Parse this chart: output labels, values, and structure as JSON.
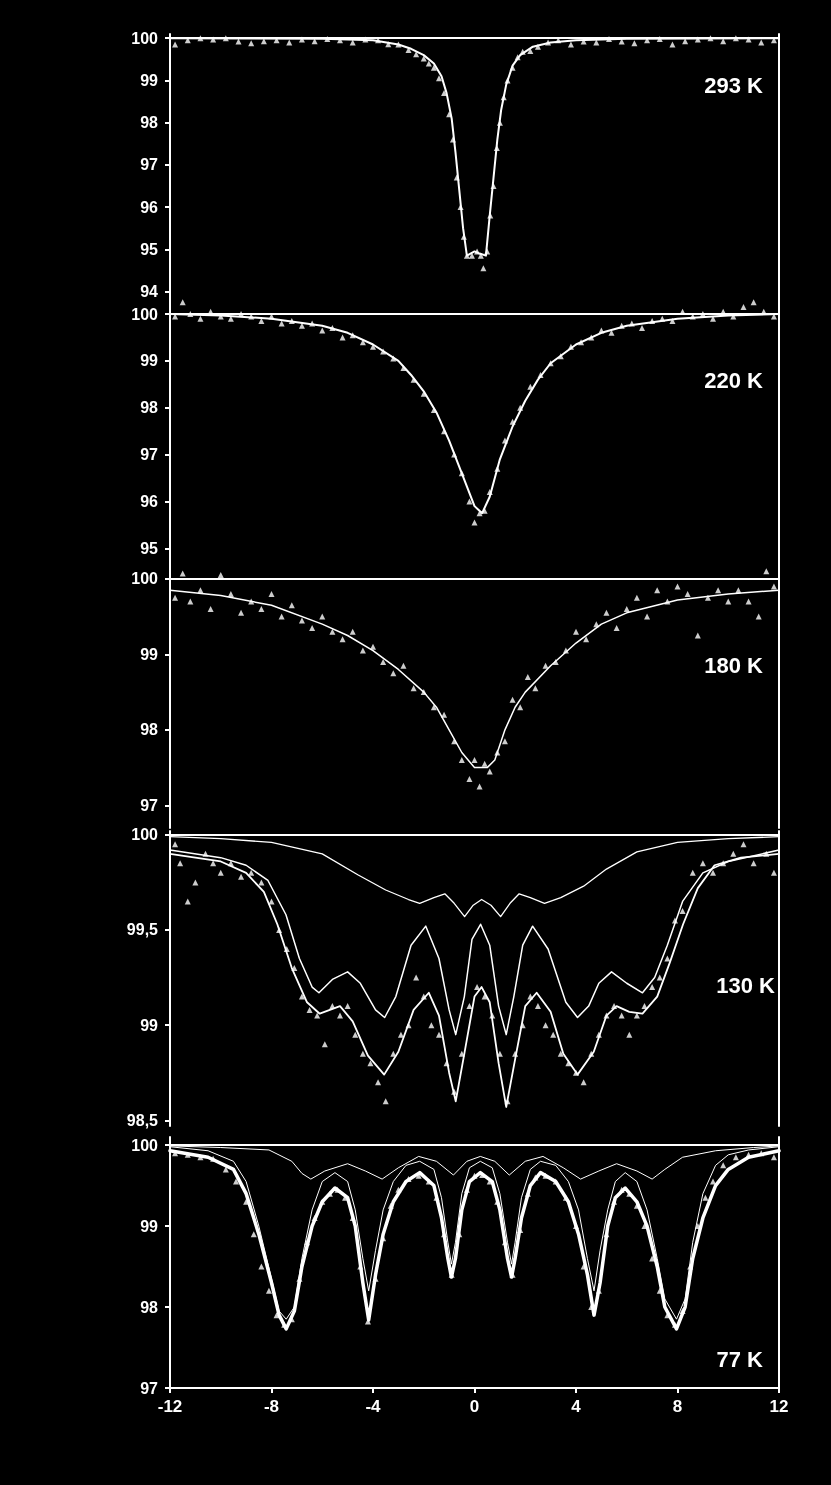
{
  "chart_data": [
    {
      "type": "line",
      "annotations": [
        "293 K"
      ],
      "xlim": [
        -12,
        12
      ],
      "ylim": [
        93.8,
        100.1
      ],
      "yticks": [
        94,
        95,
        96,
        97,
        98,
        99,
        100
      ],
      "tick_labels": "y",
      "ref_lines": [
        {
          "axis": "y",
          "value": 100,
          "color": "#ffffff"
        }
      ],
      "series": [
        {
          "type": "scatter",
          "marker": "triangle",
          "color": "#ffffff",
          "x": [
            -11.8,
            -11.3,
            -10.8,
            -10.3,
            -9.8,
            -9.3,
            -8.8,
            -8.3,
            -7.8,
            -7.3,
            -6.8,
            -6.3,
            -5.8,
            -5.3,
            -4.8,
            -4.3,
            -3.8,
            -3.4,
            -3.0,
            -2.6,
            -2.3,
            -2.0,
            -1.8,
            -1.6,
            -1.4,
            -1.2,
            -1.0,
            -0.85,
            -0.7,
            -0.55,
            -0.42,
            -0.3,
            -0.1,
            0.1,
            0.25,
            0.35,
            0.5,
            0.62,
            0.75,
            0.88,
            1.0,
            1.15,
            1.3,
            1.5,
            1.7,
            1.9,
            2.2,
            2.5,
            2.9,
            3.3,
            3.8,
            4.3,
            4.8,
            5.3,
            5.8,
            6.3,
            6.8,
            7.3,
            7.8,
            8.3,
            8.8,
            9.3,
            9.8,
            10.3,
            10.8,
            11.3,
            11.8
          ],
          "values": [
            99.85,
            99.95,
            100.0,
            99.97,
            100.0,
            99.92,
            99.88,
            99.93,
            99.95,
            99.9,
            99.97,
            99.93,
            99.98,
            99.95,
            99.9,
            99.97,
            99.95,
            99.86,
            99.85,
            99.72,
            99.62,
            99.52,
            99.4,
            99.3,
            99.05,
            98.7,
            98.2,
            97.6,
            96.7,
            96.0,
            95.3,
            94.85,
            94.85,
            94.95,
            94.85,
            94.55,
            94.95,
            95.8,
            96.5,
            97.4,
            98.0,
            98.6,
            99.0,
            99.3,
            99.55,
            99.68,
            99.7,
            99.8,
            99.9,
            99.95,
            99.85,
            99.92,
            99.9,
            99.98,
            99.92,
            99.88,
            99.95,
            99.98,
            99.85,
            99.93,
            99.97,
            100.0,
            99.93,
            100.0,
            99.97,
            99.9,
            99.95
          ]
        },
        {
          "type": "line",
          "marker": "none",
          "color": "#ffffff",
          "x": [
            -12,
            -6,
            -4,
            -3,
            -2.5,
            -2,
            -1.6,
            -1.3,
            -1.1,
            -0.9,
            -0.75,
            -0.6,
            -0.45,
            -0.3,
            0,
            0.2,
            0.45,
            0.6,
            0.75,
            0.9,
            1.05,
            1.25,
            1.5,
            1.8,
            2.3,
            3,
            4,
            6,
            12
          ],
          "values": [
            100,
            99.99,
            99.95,
            99.85,
            99.75,
            99.6,
            99.4,
            99.1,
            98.7,
            98.1,
            97.3,
            96.4,
            95.5,
            94.85,
            94.95,
            94.9,
            94.85,
            95.8,
            96.7,
            97.6,
            98.3,
            98.9,
            99.35,
            99.6,
            99.8,
            99.9,
            99.95,
            99.99,
            100
          ]
        }
      ]
    },
    {
      "type": "line",
      "annotations": [
        "220 K"
      ],
      "xlim": [
        -12,
        12
      ],
      "ylim": [
        94.75,
        100.3
      ],
      "yticks": [
        95,
        96,
        97,
        98,
        99,
        100
      ],
      "tick_labels": "y",
      "ref_lines": [
        {
          "axis": "y",
          "value": 100,
          "color": "#ffffff"
        }
      ],
      "series": [
        {
          "type": "scatter",
          "marker": "triangle",
          "color": "#ffffff",
          "x": [
            -11.8,
            -11.5,
            -11.2,
            -10.8,
            -10.4,
            -10,
            -9.6,
            -9.2,
            -8.8,
            -8.4,
            -8,
            -7.6,
            -7.2,
            -6.8,
            -6.4,
            -6,
            -5.6,
            -5.2,
            -4.8,
            -4.4,
            -4,
            -3.6,
            -3.2,
            -2.8,
            -2.4,
            -2,
            -1.6,
            -1.2,
            -0.8,
            -0.5,
            -0.2,
            0,
            0.2,
            0.4,
            0.6,
            0.9,
            1.2,
            1.5,
            1.8,
            2.2,
            2.6,
            3,
            3.4,
            3.8,
            4.2,
            4.6,
            5,
            5.4,
            5.8,
            6.2,
            6.6,
            7,
            7.4,
            7.8,
            8.2,
            8.6,
            9,
            9.4,
            9.8,
            10.2,
            10.6,
            11,
            11.4,
            11.8
          ],
          "values": [
            99.95,
            100.25,
            100.0,
            99.9,
            100.05,
            99.95,
            99.9,
            100.0,
            99.95,
            99.85,
            99.95,
            99.8,
            99.85,
            99.75,
            99.8,
            99.65,
            99.7,
            99.5,
            99.55,
            99.4,
            99.3,
            99.2,
            99.05,
            98.85,
            98.6,
            98.3,
            97.95,
            97.5,
            97.0,
            96.6,
            96.0,
            95.55,
            95.75,
            95.8,
            96.2,
            96.7,
            97.3,
            97.7,
            98.0,
            98.45,
            98.7,
            98.95,
            99.1,
            99.3,
            99.4,
            99.5,
            99.65,
            99.6,
            99.75,
            99.8,
            99.7,
            99.85,
            99.9,
            99.85,
            100.05,
            99.95,
            100.0,
            99.9,
            100.05,
            99.95,
            100.15,
            100.25,
            100.05,
            99.95
          ]
        },
        {
          "type": "line",
          "marker": "none",
          "color": "#ffffff",
          "x": [
            -12,
            -10,
            -8,
            -6,
            -5,
            -4,
            -3,
            -2.5,
            -2,
            -1.5,
            -1,
            -0.5,
            0,
            0.3,
            0.6,
            1,
            1.5,
            2,
            2.5,
            3,
            4,
            5,
            6,
            8,
            10,
            12
          ],
          "values": [
            100,
            99.97,
            99.9,
            99.75,
            99.6,
            99.35,
            99.0,
            98.7,
            98.35,
            97.9,
            97.3,
            96.6,
            95.9,
            95.75,
            96.1,
            96.9,
            97.6,
            98.15,
            98.6,
            98.95,
            99.35,
            99.6,
            99.75,
            99.9,
            99.97,
            100
          ]
        }
      ]
    },
    {
      "type": "line",
      "annotations": [
        "180 K"
      ],
      "xlim": [
        -12,
        12
      ],
      "ylim": [
        96.7,
        100.25
      ],
      "yticks": [
        97,
        98,
        99,
        100
      ],
      "tick_labels": "y",
      "ref_lines": [
        {
          "axis": "y",
          "value": 100,
          "color": "#ffffff"
        }
      ],
      "series": [
        {
          "type": "scatter",
          "marker": "triangle",
          "color": "#ffffff",
          "x": [
            -11.8,
            -11.5,
            -11.2,
            -10.8,
            -10.4,
            -10,
            -9.6,
            -9.2,
            -8.8,
            -8.4,
            -8,
            -7.6,
            -7.2,
            -6.8,
            -6.4,
            -6,
            -5.6,
            -5.2,
            -4.8,
            -4.4,
            -4,
            -3.6,
            -3.2,
            -2.8,
            -2.4,
            -2,
            -1.6,
            -1.2,
            -0.8,
            -0.5,
            -0.2,
            0,
            0.2,
            0.4,
            0.6,
            0.9,
            1.2,
            1.5,
            1.8,
            2.1,
            2.4,
            2.8,
            3.2,
            3.6,
            4,
            4.4,
            4.8,
            5.2,
            5.6,
            6,
            6.4,
            6.8,
            7.2,
            7.6,
            8,
            8.4,
            8.8,
            9.2,
            9.6,
            10,
            10.4,
            10.8,
            11.2,
            11.5,
            11.8
          ],
          "values": [
            99.75,
            100.07,
            99.7,
            99.85,
            99.6,
            100.05,
            99.8,
            99.55,
            99.7,
            99.6,
            99.8,
            99.5,
            99.65,
            99.45,
            99.35,
            99.5,
            99.3,
            99.2,
            99.3,
            99.05,
            99.1,
            98.9,
            98.75,
            98.85,
            98.55,
            98.5,
            98.3,
            98.2,
            97.85,
            97.6,
            97.35,
            97.6,
            97.25,
            97.55,
            97.45,
            97.7,
            97.85,
            98.4,
            98.3,
            98.7,
            98.55,
            98.85,
            98.9,
            99.05,
            99.3,
            99.2,
            99.4,
            99.55,
            99.35,
            99.6,
            99.75,
            99.5,
            99.85,
            99.7,
            99.9,
            99.8,
            99.25,
            99.75,
            99.85,
            99.7,
            99.85,
            99.7,
            99.5,
            100.1,
            99.9
          ]
        },
        {
          "type": "line",
          "marker": "none",
          "color": "#ffffff",
          "x": [
            -12,
            -10,
            -8,
            -6,
            -5,
            -4,
            -3,
            -2,
            -1.5,
            -1,
            -0.5,
            0,
            0.5,
            0.8,
            1.2,
            1.6,
            2,
            3,
            4,
            5,
            6,
            8,
            10,
            12
          ],
          "values": [
            99.85,
            99.78,
            99.65,
            99.4,
            99.25,
            99.05,
            98.8,
            98.5,
            98.3,
            98.0,
            97.7,
            97.5,
            97.5,
            97.6,
            98.0,
            98.3,
            98.5,
            98.85,
            99.15,
            99.4,
            99.55,
            99.72,
            99.8,
            99.85
          ]
        }
      ]
    },
    {
      "type": "line",
      "annotations": [
        "130 K"
      ],
      "xlim": [
        -12,
        12
      ],
      "ylim": [
        98.47,
        100.02
      ],
      "yticks": [
        {
          "value": 98.5,
          "label": "98,5"
        },
        99,
        {
          "value": 99.5,
          "label": "99,5"
        },
        100
      ],
      "tick_labels": "y",
      "ref_lines": [
        {
          "axis": "y",
          "value": 100,
          "color": "#ffffff"
        }
      ],
      "series": [
        {
          "type": "scatter",
          "marker": "triangle",
          "color": "#ffffff",
          "x": [
            -11.8,
            -11.6,
            -11.3,
            -11,
            -10.6,
            -10.3,
            -10,
            -9.6,
            -9.2,
            -8.8,
            -8.4,
            -8,
            -7.7,
            -7.4,
            -7.1,
            -6.8,
            -6.5,
            -6.2,
            -5.9,
            -5.6,
            -5.3,
            -5,
            -4.7,
            -4.4,
            -4.1,
            -3.8,
            -3.5,
            -3.2,
            -2.9,
            -2.6,
            -2.3,
            -2,
            -1.7,
            -1.4,
            -1.1,
            -0.8,
            -0.5,
            -0.2,
            0.1,
            0.4,
            0.7,
            1.0,
            1.3,
            1.6,
            1.9,
            2.2,
            2.5,
            2.8,
            3.1,
            3.4,
            3.7,
            4.0,
            4.3,
            4.6,
            4.9,
            5.2,
            5.5,
            5.8,
            6.1,
            6.4,
            6.7,
            7.0,
            7.3,
            7.6,
            7.9,
            8.2,
            8.6,
            9,
            9.4,
            9.8,
            10.2,
            10.6,
            11,
            11.5,
            11.8
          ],
          "values": [
            99.95,
            99.85,
            99.65,
            99.75,
            99.9,
            99.85,
            99.8,
            99.85,
            99.78,
            99.8,
            99.75,
            99.65,
            99.5,
            99.4,
            99.3,
            99.15,
            99.08,
            99.05,
            98.9,
            99.1,
            99.05,
            99.1,
            98.95,
            98.85,
            98.8,
            98.7,
            98.6,
            98.85,
            98.95,
            99.0,
            99.25,
            99.15,
            99.0,
            98.95,
            98.8,
            98.65,
            98.85,
            99.1,
            99.2,
            99.15,
            99.05,
            98.85,
            98.6,
            98.85,
            99.0,
            99.15,
            99.1,
            99.0,
            98.95,
            98.85,
            98.8,
            98.75,
            98.7,
            98.85,
            98.95,
            99.05,
            99.1,
            99.05,
            98.95,
            99.05,
            99.1,
            99.2,
            99.25,
            99.35,
            99.55,
            99.6,
            99.8,
            99.85,
            99.8,
            99.85,
            99.9,
            99.95,
            99.85,
            99.9,
            99.8
          ]
        },
        {
          "type": "line",
          "marker": "none",
          "color": "#ffffff",
          "x": [
            -12,
            -10,
            -8,
            -6,
            -4.6,
            -3.5,
            -2.6,
            -2.16,
            -1.6,
            -1.17,
            -0.8,
            -0.39,
            -0.05,
            0.28,
            0.65,
            1.03,
            1.4,
            1.76,
            2.2,
            2.76,
            3.4,
            4.3,
            5.2,
            6.4,
            8,
            10,
            12
          ],
          "values": [
            99.99,
            99.98,
            99.96,
            99.9,
            99.79,
            99.71,
            99.66,
            99.64,
            99.67,
            99.69,
            99.64,
            99.57,
            99.63,
            99.66,
            99.63,
            99.57,
            99.64,
            99.69,
            99.67,
            99.64,
            99.67,
            99.73,
            99.82,
            99.91,
            99.96,
            99.98,
            99.99
          ]
        },
        {
          "type": "line",
          "marker": "none",
          "color": "#ffffff",
          "x": [
            -12,
            -10,
            -9,
            -8.14,
            -7.43,
            -6.9,
            -6.4,
            -6.13,
            -5.6,
            -5.0,
            -4.5,
            -3.9,
            -3.54,
            -3.1,
            -2.5,
            -1.92,
            -1.4,
            -1.0,
            -0.74,
            -0.4,
            -0.1,
            0.24,
            0.6,
            0.95,
            1.25,
            1.55,
            1.9,
            2.29,
            2.9,
            3.6,
            4.06,
            4.5,
            4.9,
            5.4,
            6.0,
            6.62,
            7.1,
            7.6,
            8.2,
            9,
            10,
            12
          ],
          "values": [
            99.92,
            99.88,
            99.84,
            99.76,
            99.58,
            99.35,
            99.2,
            99.17,
            99.24,
            99.28,
            99.22,
            99.08,
            99.04,
            99.15,
            99.42,
            99.52,
            99.35,
            99.08,
            98.95,
            99.15,
            99.45,
            99.53,
            99.42,
            99.1,
            98.95,
            99.15,
            99.42,
            99.52,
            99.4,
            99.12,
            99.04,
            99.1,
            99.22,
            99.28,
            99.22,
            99.17,
            99.25,
            99.42,
            99.65,
            99.8,
            99.86,
            99.92
          ]
        },
        {
          "type": "line",
          "marker": "none",
          "color": "#ffffff",
          "x": [
            -12,
            -10,
            -9,
            -8.3,
            -7.77,
            -7.2,
            -6.6,
            -6.1,
            -5.7,
            -5.3,
            -4.8,
            -4.2,
            -3.56,
            -3.0,
            -2.4,
            -1.8,
            -1.4,
            -1.0,
            -0.74,
            -0.4,
            0,
            0.28,
            0.6,
            0.95,
            1.25,
            1.6,
            2.0,
            2.45,
            3.0,
            3.5,
            4.06,
            4.7,
            5.2,
            5.6,
            6.1,
            6.62,
            7.2,
            7.7,
            8.22,
            8.8,
            9.46,
            10.5,
            12
          ],
          "values": [
            99.9,
            99.86,
            99.8,
            99.7,
            99.53,
            99.3,
            99.12,
            99.06,
            99.08,
            99.1,
            99.02,
            98.84,
            98.74,
            98.86,
            99.08,
            99.17,
            99.05,
            98.75,
            98.6,
            98.85,
            99.15,
            99.2,
            99.12,
            98.8,
            98.57,
            98.82,
            99.1,
            99.17,
            99.07,
            98.85,
            98.74,
            98.86,
            99.05,
            99.1,
            99.07,
            99.06,
            99.15,
            99.33,
            99.53,
            99.72,
            99.84,
            99.88,
            99.9
          ]
        }
      ]
    },
    {
      "type": "line",
      "annotations": [
        "77 K"
      ],
      "xlim": [
        -12,
        12
      ],
      "xticks": [
        -12,
        -8,
        -4,
        0,
        4,
        8,
        12
      ],
      "ylim": [
        97,
        100.1
      ],
      "yticks": [
        97,
        98,
        99,
        100
      ],
      "ref_lines": [
        {
          "axis": "y",
          "value": 100,
          "color": "#ffffff"
        }
      ],
      "series": [
        {
          "type": "scatter",
          "marker": "triangle",
          "color": "#ffffff",
          "x": [
            -11.8,
            -11.3,
            -10.8,
            -10.3,
            -9.8,
            -9.4,
            -9.0,
            -8.7,
            -8.4,
            -8.1,
            -7.8,
            -7.5,
            -7.2,
            -6.9,
            -6.6,
            -6.3,
            -6.0,
            -5.7,
            -5.4,
            -5.1,
            -4.8,
            -4.5,
            -4.2,
            -3.9,
            -3.6,
            -3.3,
            -3.0,
            -2.6,
            -2.2,
            -1.8,
            -1.5,
            -1.2,
            -0.9,
            -0.6,
            -0.3,
            0,
            0.3,
            0.6,
            0.9,
            1.2,
            1.5,
            1.8,
            2.1,
            2.4,
            2.8,
            3.2,
            3.6,
            4.0,
            4.3,
            4.6,
            4.9,
            5.2,
            5.5,
            5.8,
            6.1,
            6.4,
            6.7,
            7.0,
            7.3,
            7.6,
            7.9,
            8.2,
            8.5,
            8.8,
            9.1,
            9.4,
            9.8,
            10.3,
            10.8,
            11.3,
            11.8
          ],
          "values": [
            99.9,
            99.88,
            99.85,
            99.83,
            99.7,
            99.55,
            99.3,
            98.9,
            98.5,
            98.2,
            97.9,
            97.78,
            97.85,
            98.35,
            98.8,
            99.1,
            99.3,
            99.4,
            99.45,
            99.35,
            99.1,
            98.5,
            97.82,
            98.35,
            98.85,
            99.25,
            99.45,
            99.58,
            99.62,
            99.55,
            99.35,
            98.9,
            98.4,
            98.9,
            99.45,
            99.62,
            99.63,
            99.55,
            99.3,
            98.8,
            98.4,
            98.95,
            99.4,
            99.6,
            99.62,
            99.55,
            99.35,
            99.0,
            98.5,
            98.0,
            98.2,
            98.9,
            99.3,
            99.45,
            99.4,
            99.25,
            99.0,
            98.6,
            98.2,
            97.9,
            97.78,
            97.95,
            98.5,
            99.0,
            99.35,
            99.55,
            99.75,
            99.85,
            99.88,
            99.9,
            99.85
          ]
        },
        {
          "type": "line",
          "marker": "none",
          "color": "#ffffff",
          "x": [
            -12,
            -10,
            -8.1,
            -7.2,
            -6.8,
            -6.45,
            -5.9,
            -5.0,
            -4.3,
            -3.64,
            -3.0,
            -2.2,
            -1.5,
            -0.83,
            -0.3,
            0.23,
            0.8,
            1.37,
            2.0,
            2.7,
            3.5,
            4.18,
            4.9,
            5.6,
            6.4,
            7.0,
            7.5,
            8.2,
            9.5,
            11,
            12
          ],
          "values": [
            99.99,
            99.97,
            99.94,
            99.8,
            99.65,
            99.58,
            99.68,
            99.77,
            99.68,
            99.58,
            99.72,
            99.86,
            99.8,
            99.63,
            99.8,
            99.86,
            99.8,
            99.63,
            99.8,
            99.86,
            99.72,
            99.58,
            99.68,
            99.77,
            99.68,
            99.58,
            99.7,
            99.85,
            99.93,
            99.97,
            99.99
          ]
        },
        {
          "type": "line",
          "marker": "none",
          "color": "#ffffff",
          "x": [
            -12,
            -10.5,
            -9.5,
            -9,
            -8.5,
            -8,
            -7.7,
            -7.42,
            -7.1,
            -6.8,
            -6.4,
            -6,
            -5.5,
            -5,
            -4.7,
            -4.4,
            -4.17,
            -3.9,
            -3.6,
            -3.2,
            -2.7,
            -2.16,
            -1.6,
            -1.3,
            -1.05,
            -0.91,
            -0.75,
            -0.5,
            -0.2,
            0.23,
            0.7,
            1.0,
            1.3,
            1.46,
            1.6,
            1.85,
            2.2,
            2.6,
            3.2,
            3.7,
            4.1,
            4.45,
            4.71,
            4.95,
            5.25,
            5.55,
            5.94,
            6.4,
            6.8,
            7.2,
            7.5,
            7.96,
            8.3,
            8.6,
            9,
            9.5,
            10,
            10.8,
            12
          ],
          "values": [
            99.98,
            99.93,
            99.8,
            99.55,
            99.0,
            98.35,
            97.95,
            97.85,
            98.0,
            98.6,
            99.2,
            99.55,
            99.66,
            99.55,
            99.2,
            98.6,
            98.2,
            98.7,
            99.2,
            99.55,
            99.75,
            99.8,
            99.7,
            99.35,
            98.8,
            98.53,
            98.8,
            99.4,
            99.72,
            99.8,
            99.72,
            99.4,
            98.8,
            98.53,
            98.8,
            99.35,
            99.7,
            99.8,
            99.75,
            99.55,
            99.2,
            98.6,
            98.2,
            98.7,
            99.2,
            99.55,
            99.66,
            99.55,
            99.2,
            98.6,
            98.1,
            97.85,
            98.1,
            98.8,
            99.4,
            99.75,
            99.88,
            99.94,
            99.98
          ]
        },
        {
          "type": "line",
          "marker": "none",
          "color": "#ffffff",
          "x": [
            -12,
            -10.5,
            -9.5,
            -9,
            -8.5,
            -8,
            -7.7,
            -7.42,
            -7.1,
            -6.8,
            -6.4,
            -6,
            -5.5,
            -5,
            -4.7,
            -4.4,
            -4.17,
            -3.9,
            -3.6,
            -3.2,
            -2.7,
            -2.16,
            -1.6,
            -1.3,
            -1.05,
            -0.91,
            -0.75,
            -0.5,
            -0.2,
            0.23,
            0.7,
            1.0,
            1.3,
            1.46,
            1.6,
            1.85,
            2.2,
            2.6,
            3.2,
            3.7,
            4.1,
            4.45,
            4.71,
            4.95,
            5.25,
            5.55,
            5.94,
            6.4,
            6.8,
            7.2,
            7.5,
            7.96,
            8.3,
            8.6,
            9,
            9.5,
            10,
            10.8,
            12
          ],
          "values": [
            99.93,
            99.85,
            99.7,
            99.4,
            98.9,
            98.3,
            97.9,
            97.73,
            97.95,
            98.5,
            99.0,
            99.3,
            99.47,
            99.35,
            99.0,
            98.3,
            97.84,
            98.4,
            98.9,
            99.3,
            99.55,
            99.66,
            99.5,
            99.1,
            98.6,
            98.37,
            98.6,
            99.2,
            99.55,
            99.66,
            99.55,
            99.2,
            98.6,
            98.37,
            98.6,
            99.1,
            99.5,
            99.66,
            99.55,
            99.3,
            98.9,
            98.4,
            97.9,
            98.3,
            99.0,
            99.35,
            99.47,
            99.3,
            99.0,
            98.5,
            98.0,
            97.73,
            98.0,
            98.6,
            99.1,
            99.5,
            99.7,
            99.85,
            99.93
          ]
        }
      ]
    }
  ]
}
